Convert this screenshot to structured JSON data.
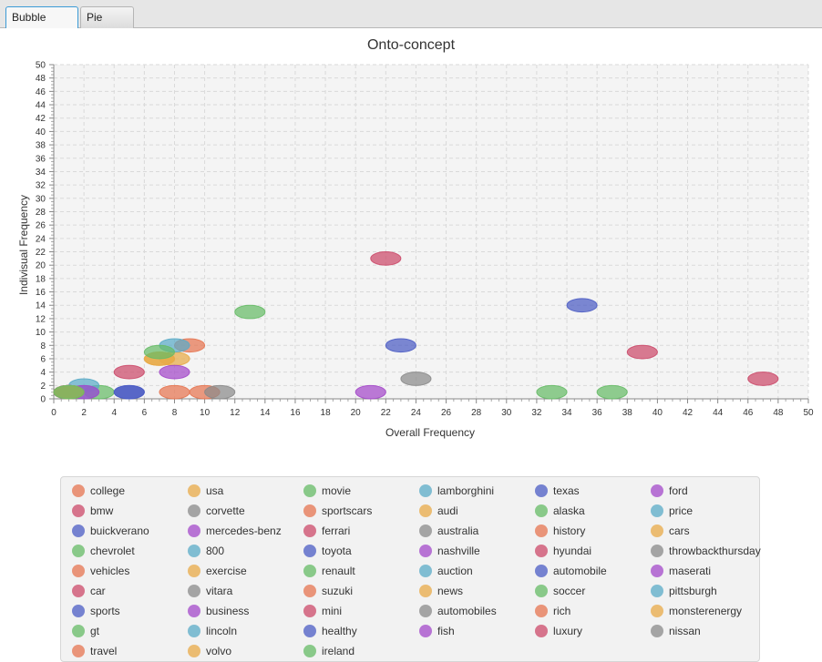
{
  "window": {
    "tabs": [
      {
        "label": "Bubble Chart",
        "active": true
      },
      {
        "label": "Pie Chart",
        "active": false
      }
    ]
  },
  "colors": {
    "accent": "#3c9bd6",
    "plot_background": "#f4f4f4",
    "grid": "#d9d9d9",
    "palette": [
      "#e67450",
      "#e8aa47",
      "#66bb66",
      "#5aabc7",
      "#4b5cc4",
      "#a348c9",
      "#cc4a6a",
      "#8a8a8a"
    ]
  },
  "chart_data": {
    "type": "scatter",
    "title": "Onto-concept",
    "xlabel": "Overall Frequency",
    "ylabel": "Indivisual Frequency",
    "xlim": [
      0,
      50
    ],
    "ylim": [
      0,
      50
    ],
    "xticks": [
      0,
      2,
      4,
      6,
      8,
      10,
      12,
      14,
      16,
      18,
      20,
      22,
      24,
      26,
      28,
      30,
      32,
      34,
      36,
      38,
      40,
      42,
      44,
      46,
      48,
      50
    ],
    "yticks": [
      0,
      2,
      4,
      6,
      8,
      10,
      12,
      14,
      16,
      18,
      20,
      22,
      24,
      26,
      28,
      30,
      32,
      34,
      36,
      38,
      40,
      42,
      44,
      46,
      48,
      50
    ],
    "grid": true,
    "legend_position": "bottom",
    "series": [
      {
        "name": "college",
        "color": "#e67450",
        "x": 10,
        "y": 1
      },
      {
        "name": "usa",
        "color": "#e8aa47",
        "x": 8,
        "y": 6
      },
      {
        "name": "movie",
        "color": "#66bb66",
        "x": 3,
        "y": 1
      },
      {
        "name": "lamborghini",
        "color": "#5aabc7",
        "x": 2,
        "y": 2
      },
      {
        "name": "texas",
        "color": "#4b5cc4",
        "x": 5,
        "y": 1
      },
      {
        "name": "ford",
        "color": "#a348c9",
        "x": 8,
        "y": 4
      },
      {
        "name": "bmw",
        "color": "#cc4a6a",
        "x": 5,
        "y": 4
      },
      {
        "name": "corvette",
        "color": "#8a8a8a",
        "x": 11,
        "y": 1
      },
      {
        "name": "sportscars",
        "color": "#e67450",
        "x": 9,
        "y": 8
      },
      {
        "name": "audi",
        "color": "#e8aa47",
        "x": 7,
        "y": 6
      },
      {
        "name": "alaska",
        "color": "#66bb66",
        "x": 37,
        "y": 1
      },
      {
        "name": "price",
        "color": "#5aabc7",
        "x": 8,
        "y": 8
      },
      {
        "name": "buickverano",
        "color": "#4b5cc4",
        "x": 1,
        "y": 1
      },
      {
        "name": "mercedes-benz",
        "color": "#a348c9",
        "x": 21,
        "y": 1
      },
      {
        "name": "ferrari",
        "color": "#cc4a6a",
        "x": 47,
        "y": 3
      },
      {
        "name": "australia",
        "color": "#8a8a8a",
        "x": 24,
        "y": 3
      },
      {
        "name": "history",
        "color": "#e67450",
        "x": 8,
        "y": 1
      },
      {
        "name": "cars",
        "color": "#e8aa47",
        "x": 7,
        "y": 6
      },
      {
        "name": "chevrolet",
        "color": "#66bb66",
        "x": 13,
        "y": 13
      },
      {
        "name": "800",
        "color": "#5aabc7",
        "x": 2,
        "y": 1
      },
      {
        "name": "toyota",
        "color": "#4b5cc4",
        "x": 23,
        "y": 8
      },
      {
        "name": "nashville",
        "color": "#a348c9",
        "x": 2,
        "y": 1
      },
      {
        "name": "hyundai",
        "color": "#cc4a6a",
        "x": 22,
        "y": 21
      },
      {
        "name": "throwbackthursday",
        "color": "#8a8a8a",
        "x": 1,
        "y": 1
      },
      {
        "name": "vehicles",
        "color": "#e67450",
        "x": 1,
        "y": 1
      },
      {
        "name": "exercise",
        "color": "#e8aa47",
        "x": 1,
        "y": 1
      },
      {
        "name": "renault",
        "color": "#66bb66",
        "x": 7,
        "y": 7
      },
      {
        "name": "auction",
        "color": "#5aabc7",
        "x": 1,
        "y": 1
      },
      {
        "name": "automobile",
        "color": "#4b5cc4",
        "x": 35,
        "y": 14
      },
      {
        "name": "maserati",
        "color": "#a348c9",
        "x": 1,
        "y": 1
      },
      {
        "name": "car",
        "color": "#cc4a6a",
        "x": 39,
        "y": 7
      },
      {
        "name": "vitara",
        "color": "#8a8a8a",
        "x": 1,
        "y": 1
      },
      {
        "name": "suzuki",
        "color": "#e67450",
        "x": 1,
        "y": 1
      },
      {
        "name": "news",
        "color": "#e8aa47",
        "x": 1,
        "y": 1
      },
      {
        "name": "soccer",
        "color": "#66bb66",
        "x": 33,
        "y": 1
      },
      {
        "name": "pittsburgh",
        "color": "#5aabc7",
        "x": 1,
        "y": 1
      },
      {
        "name": "sports",
        "color": "#4b5cc4",
        "x": 5,
        "y": 1
      },
      {
        "name": "business",
        "color": "#a348c9",
        "x": 1,
        "y": 1
      },
      {
        "name": "mini",
        "color": "#cc4a6a",
        "x": 1,
        "y": 1
      },
      {
        "name": "automobiles",
        "color": "#8a8a8a",
        "x": 1,
        "y": 1
      },
      {
        "name": "rich",
        "color": "#e67450",
        "x": 1,
        "y": 1
      },
      {
        "name": "monsterenergy",
        "color": "#e8aa47",
        "x": 1,
        "y": 1
      },
      {
        "name": "gt",
        "color": "#66bb66",
        "x": 1,
        "y": 1
      },
      {
        "name": "lincoln",
        "color": "#5aabc7",
        "x": 1,
        "y": 1
      },
      {
        "name": "healthy",
        "color": "#4b5cc4",
        "x": 1,
        "y": 1
      },
      {
        "name": "fish",
        "color": "#a348c9",
        "x": 1,
        "y": 1
      },
      {
        "name": "luxury",
        "color": "#cc4a6a",
        "x": 1,
        "y": 1
      },
      {
        "name": "nissan",
        "color": "#8a8a8a",
        "x": 1,
        "y": 1
      },
      {
        "name": "travel",
        "color": "#e67450",
        "x": 1,
        "y": 1
      },
      {
        "name": "volvo",
        "color": "#e8aa47",
        "x": 1,
        "y": 1
      },
      {
        "name": "ireland",
        "color": "#66bb66",
        "x": 1,
        "y": 1
      }
    ]
  }
}
